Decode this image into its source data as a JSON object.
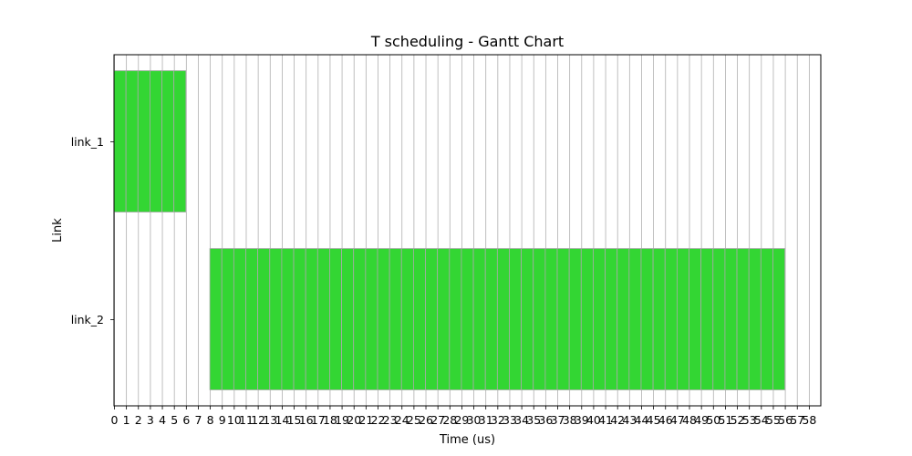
{
  "chart_data": {
    "type": "bar",
    "orientation": "horizontal",
    "title": "T scheduling - Gantt Chart",
    "xlabel": "Time (us)",
    "ylabel": "Link",
    "xlim": [
      0,
      59
    ],
    "x_ticks": [
      0,
      1,
      2,
      3,
      4,
      5,
      6,
      7,
      8,
      9,
      10,
      11,
      12,
      13,
      14,
      15,
      16,
      17,
      18,
      19,
      20,
      21,
      22,
      23,
      24,
      25,
      26,
      27,
      28,
      29,
      30,
      31,
      32,
      33,
      34,
      35,
      36,
      37,
      38,
      39,
      40,
      41,
      42,
      43,
      44,
      45,
      46,
      47,
      48,
      49,
      50,
      51,
      52,
      53,
      54,
      55,
      56,
      57,
      58
    ],
    "categories": [
      "link_1",
      "link_2"
    ],
    "grid": "vertical",
    "bar_color": "#33d633",
    "bar_edge_color": "#aaaaaa",
    "bars": [
      {
        "category": "link_1",
        "start": 0,
        "end": 6
      },
      {
        "category": "link_2",
        "start": 8,
        "end": 56
      }
    ]
  }
}
